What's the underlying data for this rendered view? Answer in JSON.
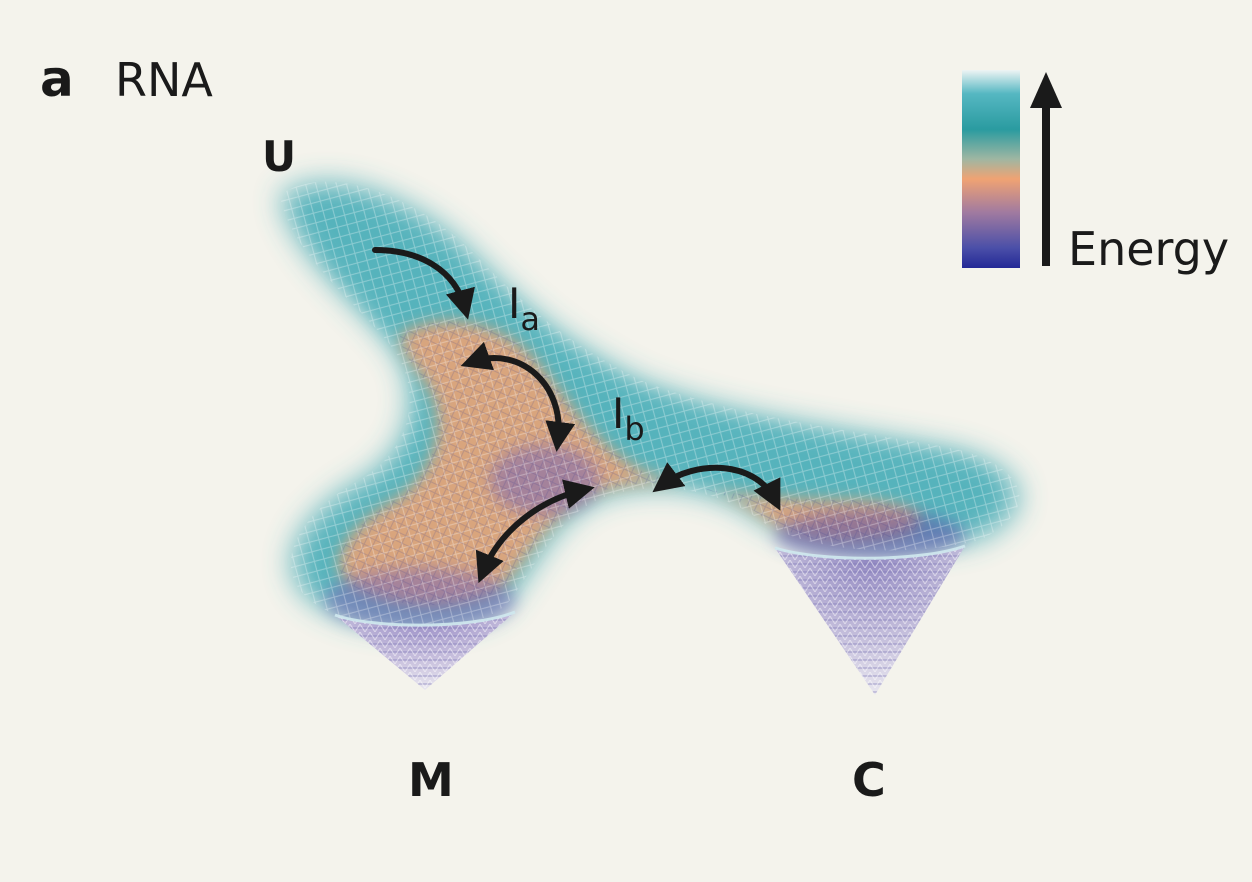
{
  "panel": {
    "letter": "a",
    "title": "RNA"
  },
  "states": {
    "unfolded": "U",
    "intermediate_a": "I",
    "intermediate_a_sub": "a",
    "intermediate_b": "I",
    "intermediate_b_sub": "b",
    "misfolded": "M",
    "correct": "C"
  },
  "legend": {
    "label": "Energy",
    "gradient": [
      "#eef4f4",
      "#3aa6b2",
      "#2a9ba0",
      "#d9986e",
      "#f0a373",
      "#8e86b0",
      "#2a2f9a"
    ]
  },
  "colors": {
    "background": "#f4f3ec",
    "arrow": "#1a1a1a",
    "surface_high": "#3aa6b2",
    "surface_mid": "#e8a27a",
    "surface_low": "#7a66b4"
  }
}
